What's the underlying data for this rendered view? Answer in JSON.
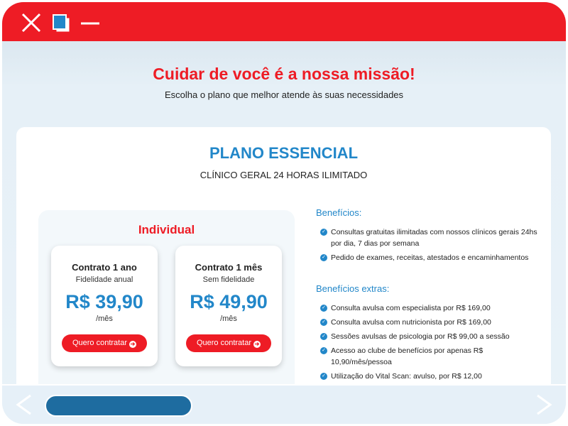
{
  "window": {
    "icons": [
      "close-icon",
      "restore-icon",
      "minimize-icon"
    ]
  },
  "header": {
    "title": "Cuidar de você é a nossa missão!",
    "subtitle": "Escolha o plano que melhor atende às suas necessidades"
  },
  "plan": {
    "title": "PLANO ESSENCIAL",
    "subtitle": "CLÍNICO GERAL 24 HORAS ILIMITADO",
    "group": "Individual",
    "options": [
      {
        "title": "Contrato 1 ano",
        "note": "Fidelidade anual",
        "price": "R$ 39,90",
        "period": "/mês",
        "button": "Quero contratar"
      },
      {
        "title": "Contrato 1 mês",
        "note": "Sem fidelidade",
        "price": "R$ 49,90",
        "period": "/mês",
        "button": "Quero contratar"
      }
    ]
  },
  "benefits": {
    "heading": "Benefícios:",
    "items": [
      "Consultas gratuitas ilimitadas com nossos clínicos gerais 24hs por dia, 7 dias por semana",
      "Pedido de exames, receitas, atestados e encaminhamentos"
    ]
  },
  "extras": {
    "heading": "Benefícios extras:",
    "items": [
      "Consulta avulsa com especialista por R$ 169,00",
      "Consulta avulsa com nutricionista por R$ 169,00",
      "Sessões avulsas de psicologia por R$ 99,00 a sessão",
      "Acesso ao clube de benefícios por apenas R$ 10,90/mês/pessoa",
      "Utilização do Vital Scan: avulso, por R$ 12,00"
    ]
  },
  "colors": {
    "brand_red": "#ee1c25",
    "accent_blue": "#2287c9",
    "scroll_thumb": "#1e6ca0"
  }
}
